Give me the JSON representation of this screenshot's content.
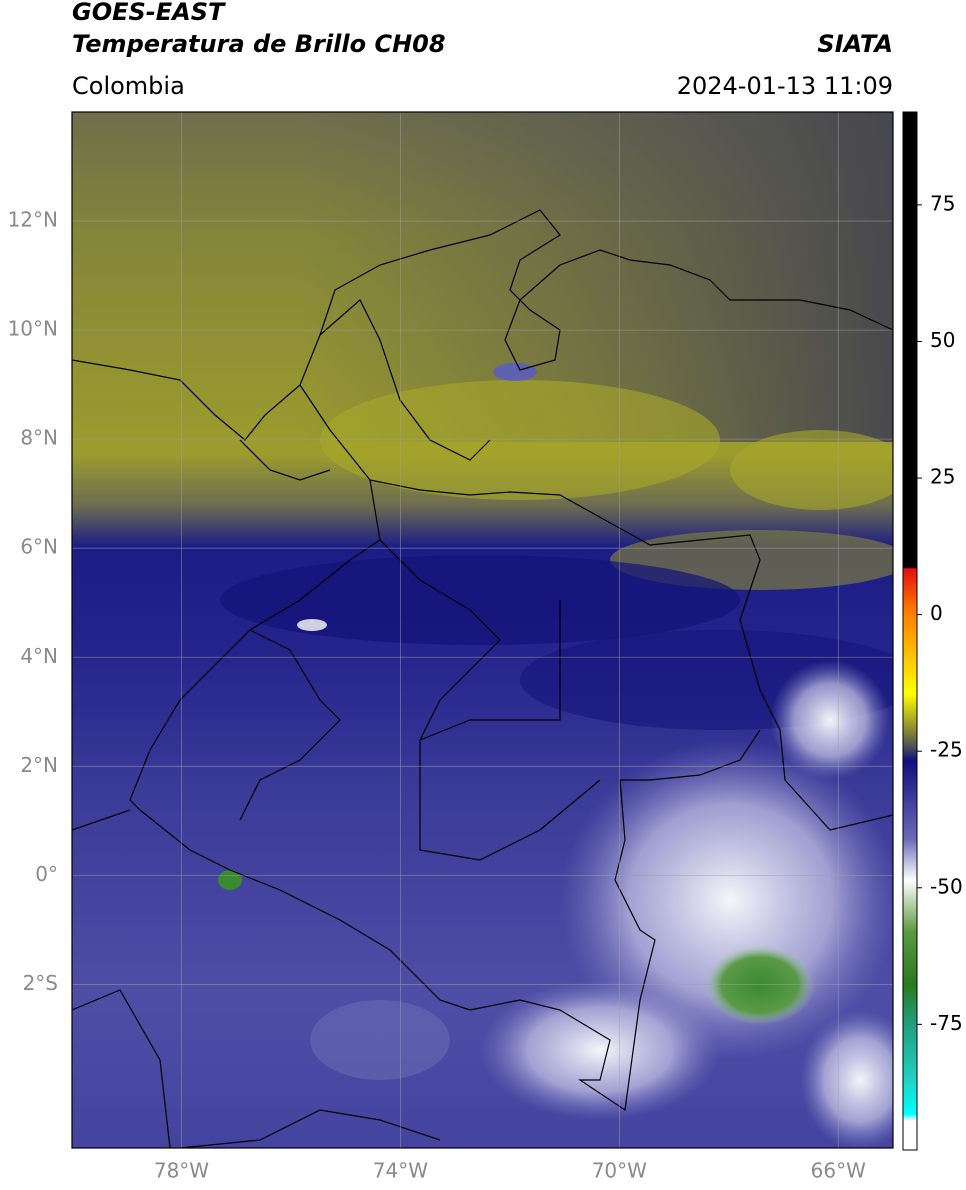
{
  "header": {
    "title_line1": "GOES-EAST",
    "title_line2": "Temperatura de Brillo CH08",
    "region": "Colombia",
    "source": "SIATA",
    "datetime": "2024-01-13 11:09"
  },
  "map": {
    "xlim": [
      -80,
      -65
    ],
    "ylim": [
      -5,
      14
    ],
    "xticks": [
      {
        "value": -78,
        "label": "78°W"
      },
      {
        "value": -74,
        "label": "74°W"
      },
      {
        "value": -70,
        "label": "70°W"
      },
      {
        "value": -66,
        "label": "66°W"
      }
    ],
    "yticks": [
      {
        "value": 12,
        "label": "12°N"
      },
      {
        "value": 10,
        "label": "10°N"
      },
      {
        "value": 8,
        "label": "8°N"
      },
      {
        "value": 6,
        "label": "6°N"
      },
      {
        "value": 4,
        "label": "4°N"
      },
      {
        "value": 2,
        "label": "2°N"
      },
      {
        "value": 0,
        "label": "0°"
      },
      {
        "value": -2,
        "label": "2°S"
      }
    ],
    "grid": true
  },
  "colorbar": {
    "lim": [
      -98,
      92
    ],
    "ticks": [
      75,
      50,
      25,
      0,
      -25,
      -50,
      -75
    ]
  }
}
